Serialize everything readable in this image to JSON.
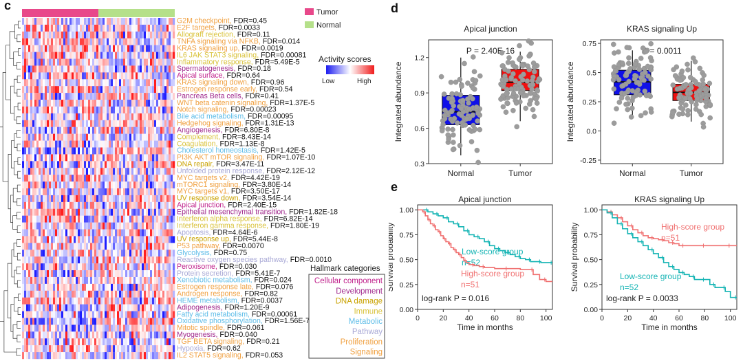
{
  "panels": {
    "c": "c",
    "d": "d",
    "e": "e"
  },
  "heatmap": {
    "group_legend": [
      {
        "label": "Tumor",
        "color": "#e8488a"
      },
      {
        "label": "Normal",
        "color": "#b5e08a"
      }
    ],
    "activity_legend": {
      "title": "Activity scores",
      "low": "Low",
      "high": "High"
    },
    "category_legend": {
      "title": "Hallmark categories",
      "items": [
        {
          "label": "Cellular component",
          "color": "#c0228c"
        },
        {
          "label": "Development",
          "color": "#a0288c"
        },
        {
          "label": "DNA damage",
          "color": "#c9a200"
        },
        {
          "label": "Immune",
          "color": "#d9c23a"
        },
        {
          "label": "Metabolic",
          "color": "#5fbde8"
        },
        {
          "label": "Pathway",
          "color": "#a9a9d6"
        },
        {
          "label": "Proliferation",
          "color": "#f0a040"
        },
        {
          "label": "Signaling",
          "color": "#f0a040"
        }
      ]
    },
    "rows": [
      {
        "name": "G2M checkpoint",
        "fdr": "FDR=0.45",
        "cat": "Proliferation"
      },
      {
        "name": "E2F targets",
        "fdr": "FDR=0.0033",
        "cat": "Proliferation"
      },
      {
        "name": "Allograft rejection",
        "fdr": "FDR=0.11",
        "cat": "Immune"
      },
      {
        "name": "TNFA signaling via NFKB",
        "fdr": "FDR=0.014",
        "cat": "Signaling"
      },
      {
        "name": "KRAS signaling up",
        "fdr": "FDR=0.0019",
        "cat": "Signaling"
      },
      {
        "name": "IL6 JAK STAT3 signaling",
        "fdr": "FDR=0.00081",
        "cat": "Immune"
      },
      {
        "name": "Inflammatory response",
        "fdr": "FDR=5.49E-5",
        "cat": "Immune"
      },
      {
        "name": "Spermatogenesis",
        "fdr": "FDR=0.18",
        "cat": "Development"
      },
      {
        "name": "Apical surface",
        "fdr": "FDR=0.64",
        "cat": "Cellular component"
      },
      {
        "name": "KRAS signaling down",
        "fdr": "FDR=0.96",
        "cat": "Signaling"
      },
      {
        "name": "Estrogen response early",
        "fdr": "FDR=0.54",
        "cat": "Signaling"
      },
      {
        "name": "Pancreas Beta cells",
        "fdr": "FDR=0.41",
        "cat": "Development"
      },
      {
        "name": "WNT beta catenin signaling",
        "fdr": "FDR=1.37E-5",
        "cat": "Signaling"
      },
      {
        "name": "Notch signaling",
        "fdr": "FDR=0.00023",
        "cat": "Signaling"
      },
      {
        "name": "Bile acid metabolism",
        "fdr": "FDR=0.00095",
        "cat": "Metabolic"
      },
      {
        "name": "Hedgehog signaling",
        "fdr": "FDR=1.31E-13",
        "cat": "Signaling"
      },
      {
        "name": "Angiogenesis",
        "fdr": "FDR=6.80E-8",
        "cat": "Development"
      },
      {
        "name": "Complement",
        "fdr": "FDR=8.43E-14",
        "cat": "Immune"
      },
      {
        "name": "Coagulation",
        "fdr": "FDR=1.13E-8",
        "cat": "Immune"
      },
      {
        "name": "Cholesterol homeostasis",
        "fdr": "FDR=1.42E-5",
        "cat": "Metabolic"
      },
      {
        "name": "PI3K AKT mTOR signaling",
        "fdr": "FDR=1.07E-10",
        "cat": "Signaling"
      },
      {
        "name": "DNA repair",
        "fdr": "FDR=3.47E-11",
        "cat": "DNA damage"
      },
      {
        "name": "Unfolded protein response",
        "fdr": "FDR=2.12E-12",
        "cat": "Pathway"
      },
      {
        "name": "MYC targets v2",
        "fdr": "FDR=4.42E-19",
        "cat": "Proliferation"
      },
      {
        "name": "mTORC1 signaling",
        "fdr": "FDR=3.80E-14",
        "cat": "Signaling"
      },
      {
        "name": "MYC targets v1",
        "fdr": "FDR=3.50E-17",
        "cat": "Proliferation"
      },
      {
        "name": "UV response down",
        "fdr": "FDR=3.54E-14",
        "cat": "DNA damage"
      },
      {
        "name": "Apical junction",
        "fdr": "FDR=2.40E-15",
        "cat": "Cellular component"
      },
      {
        "name": "Epithelial mesenchymal transition",
        "fdr": "FDR=1.82E-18",
        "cat": "Development"
      },
      {
        "name": "Interferon alpha response",
        "fdr": "FDR=6.82E-14",
        "cat": "Immune"
      },
      {
        "name": "Interferon gamma response",
        "fdr": "FDR=1.80E-19",
        "cat": "Immune"
      },
      {
        "name": "Apoptosis",
        "fdr": "FDR=4.64E-6",
        "cat": "Pathway"
      },
      {
        "name": "UV response up",
        "fdr": "FDR=5.44E-8",
        "cat": "DNA damage"
      },
      {
        "name": "P53 pathway",
        "fdr": "FDR=0.0070",
        "cat": "Proliferation"
      },
      {
        "name": "Glycolysis",
        "fdr": "FDR=0.75",
        "cat": "Metabolic"
      },
      {
        "name": "Reactive oxygen species pathway",
        "fdr": "FDR=0.0010",
        "cat": "Pathway"
      },
      {
        "name": "Peroxisome",
        "fdr": "FDR=0.030",
        "cat": "Cellular component"
      },
      {
        "name": "Protein secretion",
        "fdr": "FDR=5.41E-7",
        "cat": "Pathway"
      },
      {
        "name": "Xenobiotic metabolism",
        "fdr": "FDR=0.024",
        "cat": "Metabolic"
      },
      {
        "name": "Estrogen response late",
        "fdr": "FDR=0.076",
        "cat": "Signaling"
      },
      {
        "name": "Androgen response",
        "fdr": "FDR=0.82",
        "cat": "Signaling"
      },
      {
        "name": "HEME metabolism",
        "fdr": "FDR=0.0037",
        "cat": "Metabolic"
      },
      {
        "name": "Adipogenesis",
        "fdr": "FDR=1.20E-9",
        "cat": "Development"
      },
      {
        "name": "Fatty acid metabolism",
        "fdr": "FDR=0.00061",
        "cat": "Metabolic"
      },
      {
        "name": "Oxidative phosphorylation",
        "fdr": "FDR=1.56E-7",
        "cat": "Metabolic"
      },
      {
        "name": "Mitotic spindle",
        "fdr": "FDR=0.061",
        "cat": "Proliferation"
      },
      {
        "name": "Myogenesis",
        "fdr": "FDR=0.040",
        "cat": "Development"
      },
      {
        "name": "TGF BETA signaling",
        "fdr": "FDR=0.21",
        "cat": "Signaling"
      },
      {
        "name": "Hypoxia",
        "fdr": "FDR=0.62",
        "cat": "Pathway"
      },
      {
        "name": "IL2 STAT5 signaling",
        "fdr": "FDR=0.053",
        "cat": "Signaling"
      }
    ]
  },
  "chart_data": [
    {
      "type": "heatmap",
      "title": "",
      "columns": [
        "Tumor",
        "Normal"
      ],
      "scale": {
        "low": "Low",
        "high": "High"
      }
    },
    {
      "type": "box",
      "title": "Apical junction",
      "ylabel": "Integrated abundance",
      "categories": [
        "Normal",
        "Tumor"
      ],
      "yticks": [
        0.3,
        0.6,
        0.9,
        1.2
      ],
      "ylim": [
        0.3,
        1.35
      ],
      "p_label": "P = 2.40E-16",
      "boxes": [
        {
          "name": "Normal",
          "color": "#1010e8",
          "whisker_low": 0.37,
          "q1": 0.63,
          "median": 0.74,
          "q3": 0.88,
          "whisker_high": 1.2
        },
        {
          "name": "Tumor",
          "color": "#f01010",
          "whisker_low": 0.66,
          "q1": 0.92,
          "median": 0.99,
          "q3": 1.1,
          "whisker_high": 1.25
        }
      ]
    },
    {
      "type": "box",
      "title": "KRAS signaling Up",
      "ylabel": "Integrated abundance",
      "categories": [
        "Normal",
        "Tumor"
      ],
      "yticks": [
        -0.25,
        0.0,
        0.25,
        0.5,
        0.75
      ],
      "ylim": [
        -0.28,
        0.78
      ],
      "p_label": "P = 0.0011",
      "boxes": [
        {
          "name": "Normal",
          "color": "#1010e8",
          "whisker_low": 0.11,
          "q1": 0.31,
          "median": 0.42,
          "q3": 0.52,
          "whisker_high": 0.69
        },
        {
          "name": "Tumor",
          "color": "#f01010",
          "whisker_low": 0.08,
          "q1": 0.26,
          "median": 0.33,
          "q3": 0.4,
          "whisker_high": 0.6
        }
      ]
    },
    {
      "type": "line",
      "title": "Apical junction",
      "xlabel": "Time in months",
      "ylabel": "Survival probability",
      "xlim": [
        0,
        105
      ],
      "ylim": [
        0,
        1.05
      ],
      "xticks": [
        0,
        20,
        40,
        60,
        80,
        100
      ],
      "yticks": [
        0.0,
        0.25,
        0.5,
        0.75,
        1.0
      ],
      "annotation": "log-rank P = 0.016",
      "series": [
        {
          "name": "Low-score group",
          "n_label": "n=52",
          "color": "#14b4b4",
          "x": [
            0,
            5,
            8,
            12,
            16,
            20,
            24,
            28,
            32,
            36,
            40,
            44,
            48,
            52,
            56,
            60,
            64,
            68,
            72,
            76,
            80,
            84,
            88,
            92,
            96,
            100,
            105
          ],
          "y": [
            1.0,
            1.0,
            0.98,
            0.96,
            0.94,
            0.92,
            0.88,
            0.86,
            0.83,
            0.79,
            0.75,
            0.73,
            0.71,
            0.68,
            0.64,
            0.61,
            0.59,
            0.57,
            0.55,
            0.53,
            0.51,
            0.5,
            0.48,
            0.48,
            0.47,
            0.47,
            0.47
          ]
        },
        {
          "name": "High-score group",
          "n_label": "n=51",
          "color": "#f07070",
          "x": [
            0,
            4,
            6,
            8,
            10,
            12,
            14,
            16,
            18,
            20,
            22,
            24,
            26,
            28,
            30,
            32,
            34,
            36,
            38,
            40,
            44,
            48,
            52,
            60,
            70,
            80,
            90,
            95,
            100,
            105
          ],
          "y": [
            1.0,
            0.98,
            0.94,
            0.9,
            0.86,
            0.84,
            0.8,
            0.78,
            0.74,
            0.71,
            0.68,
            0.66,
            0.62,
            0.6,
            0.57,
            0.55,
            0.52,
            0.49,
            0.47,
            0.45,
            0.44,
            0.43,
            0.42,
            0.41,
            0.41,
            0.4,
            0.35,
            0.3,
            0.28,
            0.28
          ]
        }
      ]
    },
    {
      "type": "line",
      "title": "KRAS signaling Up",
      "xlabel": "Time in months",
      "ylabel": "Survival probability",
      "xlim": [
        0,
        105
      ],
      "ylim": [
        0,
        1.05
      ],
      "xticks": [
        0,
        20,
        40,
        60,
        80,
        100
      ],
      "yticks": [
        0.0,
        0.25,
        0.5,
        0.75,
        1.0
      ],
      "annotation": "log-rank P = 0.0033",
      "series": [
        {
          "name": "High-score group",
          "n_label": "n=51",
          "color": "#f07070",
          "x": [
            0,
            4,
            8,
            12,
            16,
            20,
            24,
            28,
            32,
            36,
            40,
            44,
            48,
            52,
            56,
            60,
            64,
            70,
            80,
            90,
            100,
            105
          ],
          "y": [
            1.0,
            0.98,
            0.95,
            0.92,
            0.88,
            0.84,
            0.8,
            0.77,
            0.74,
            0.72,
            0.71,
            0.7,
            0.69,
            0.67,
            0.66,
            0.64,
            0.64,
            0.64,
            0.64,
            0.64,
            0.64,
            0.64
          ]
        },
        {
          "name": "Low-score group",
          "n_label": "n=52",
          "color": "#14b4b4",
          "x": [
            0,
            4,
            8,
            12,
            16,
            20,
            24,
            28,
            32,
            36,
            40,
            44,
            48,
            52,
            56,
            60,
            64,
            68,
            72,
            76,
            80,
            84,
            88,
            92,
            96,
            100,
            105
          ],
          "y": [
            1.0,
            0.97,
            0.92,
            0.86,
            0.81,
            0.76,
            0.72,
            0.68,
            0.64,
            0.6,
            0.56,
            0.52,
            0.47,
            0.43,
            0.4,
            0.37,
            0.35,
            0.33,
            0.3,
            0.3,
            0.3,
            0.25,
            0.22,
            0.22,
            0.18,
            0.12,
            0.12
          ]
        }
      ]
    }
  ]
}
